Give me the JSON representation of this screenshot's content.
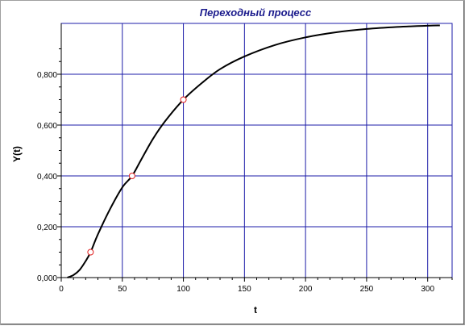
{
  "chart_data": {
    "type": "line",
    "title": "Переходный процесс",
    "xlabel": "t",
    "ylabel": "Y(t)",
    "xlim": [
      0,
      320
    ],
    "ylim": [
      0,
      1
    ],
    "grid": true,
    "colors": {
      "title": "#1a1a8c",
      "grid": "#1c1ca8",
      "line": "#000000",
      "marker": "#e02020"
    },
    "x_ticks": [
      {
        "value": 0,
        "label": "0"
      },
      {
        "value": 50,
        "label": "50"
      },
      {
        "value": 100,
        "label": "100"
      },
      {
        "value": 150,
        "label": "150"
      },
      {
        "value": 200,
        "label": "200"
      },
      {
        "value": 250,
        "label": "250"
      },
      {
        "value": 300,
        "label": "300"
      }
    ],
    "y_ticks": [
      {
        "value": 0,
        "label": "0,000"
      },
      {
        "value": 0.2,
        "label": "0,200"
      },
      {
        "value": 0.4,
        "label": "0,400"
      },
      {
        "value": 0.6,
        "label": "0,600"
      },
      {
        "value": 0.8,
        "label": "0,800"
      }
    ],
    "series": [
      {
        "x": [
          5,
          10,
          15,
          20,
          24,
          30,
          40,
          50,
          58,
          65,
          75,
          85,
          100,
          115,
          130,
          150,
          175,
          200,
          225,
          250,
          275,
          300,
          310
        ],
        "y": [
          0,
          0.01,
          0.03,
          0.065,
          0.1,
          0.17,
          0.27,
          0.355,
          0.4,
          0.46,
          0.545,
          0.615,
          0.7,
          0.765,
          0.82,
          0.87,
          0.915,
          0.945,
          0.965,
          0.978,
          0.986,
          0.991,
          0.992
        ]
      }
    ],
    "markers": [
      {
        "x": 24,
        "y": 0.1
      },
      {
        "x": 58,
        "y": 0.4
      },
      {
        "x": 100,
        "y": 0.7
      }
    ]
  }
}
